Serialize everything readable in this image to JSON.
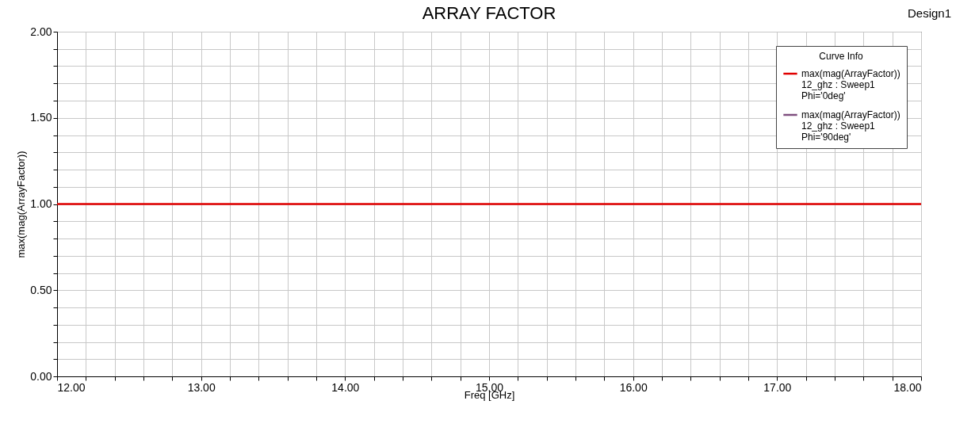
{
  "chart_data": {
    "type": "line",
    "title": "ARRAY FACTOR",
    "xlabel": "Freq [GHz]",
    "ylabel": "max(mag(ArrayFactor))",
    "legend_title": "Curve Info",
    "annotations": [
      "Design1"
    ],
    "x": [
      12,
      18
    ],
    "series": [
      {
        "name": "max(mag(ArrayFactor))\n12_ghz : Sweep1\nPhi='0deg'",
        "color": "#e00000",
        "values": [
          1,
          1
        ]
      },
      {
        "name": "max(mag(ArrayFactor))\n12_ghz : Sweep1\nPhi='90deg'",
        "color": "#7f4f7f",
        "values": [
          null,
          null
        ]
      }
    ],
    "xlim": [
      12,
      18
    ],
    "ylim": [
      0,
      2
    ],
    "xticks": [
      {
        "value": 12,
        "label": "12.00"
      },
      {
        "value": 12.2,
        "label": null
      },
      {
        "value": 12.4,
        "label": null
      },
      {
        "value": 12.6,
        "label": null
      },
      {
        "value": 12.8,
        "label": null
      },
      {
        "value": 13,
        "label": "13.00"
      },
      {
        "value": 13.2,
        "label": null
      },
      {
        "value": 13.4,
        "label": null
      },
      {
        "value": 13.6,
        "label": null
      },
      {
        "value": 13.8,
        "label": null
      },
      {
        "value": 14,
        "label": "14.00"
      },
      {
        "value": 14.2,
        "label": null
      },
      {
        "value": 14.4,
        "label": null
      },
      {
        "value": 14.6,
        "label": null
      },
      {
        "value": 14.8,
        "label": null
      },
      {
        "value": 15,
        "label": "15.00"
      },
      {
        "value": 15.2,
        "label": null
      },
      {
        "value": 15.4,
        "label": null
      },
      {
        "value": 15.6,
        "label": null
      },
      {
        "value": 15.8,
        "label": null
      },
      {
        "value": 16,
        "label": "16.00"
      },
      {
        "value": 16.2,
        "label": null
      },
      {
        "value": 16.4,
        "label": null
      },
      {
        "value": 16.6,
        "label": null
      },
      {
        "value": 16.8,
        "label": null
      },
      {
        "value": 17,
        "label": "17.00"
      },
      {
        "value": 17.2,
        "label": null
      },
      {
        "value": 17.4,
        "label": null
      },
      {
        "value": 17.6,
        "label": null
      },
      {
        "value": 17.8,
        "label": null
      },
      {
        "value": 18,
        "label": "18.00"
      }
    ],
    "yticks": [
      {
        "value": 0,
        "label": "0.00"
      },
      {
        "value": 0.1,
        "label": null
      },
      {
        "value": 0.2,
        "label": null
      },
      {
        "value": 0.3,
        "label": null
      },
      {
        "value": 0.4,
        "label": null
      },
      {
        "value": 0.5,
        "label": "0.50"
      },
      {
        "value": 0.6,
        "label": null
      },
      {
        "value": 0.7,
        "label": null
      },
      {
        "value": 0.8,
        "label": null
      },
      {
        "value": 0.9,
        "label": null
      },
      {
        "value": 1,
        "label": "1.00"
      },
      {
        "value": 1.1,
        "label": null
      },
      {
        "value": 1.2,
        "label": null
      },
      {
        "value": 1.3,
        "label": null
      },
      {
        "value": 1.4,
        "label": null
      },
      {
        "value": 1.5,
        "label": "1.50"
      },
      {
        "value": 1.6,
        "label": null
      },
      {
        "value": 1.7,
        "label": null
      },
      {
        "value": 1.8,
        "label": null
      },
      {
        "value": 1.9,
        "label": null
      },
      {
        "value": 2,
        "label": "2.00"
      }
    ],
    "grid": true,
    "legend": "top right",
    "line_style": "solid",
    "marker": "none"
  }
}
